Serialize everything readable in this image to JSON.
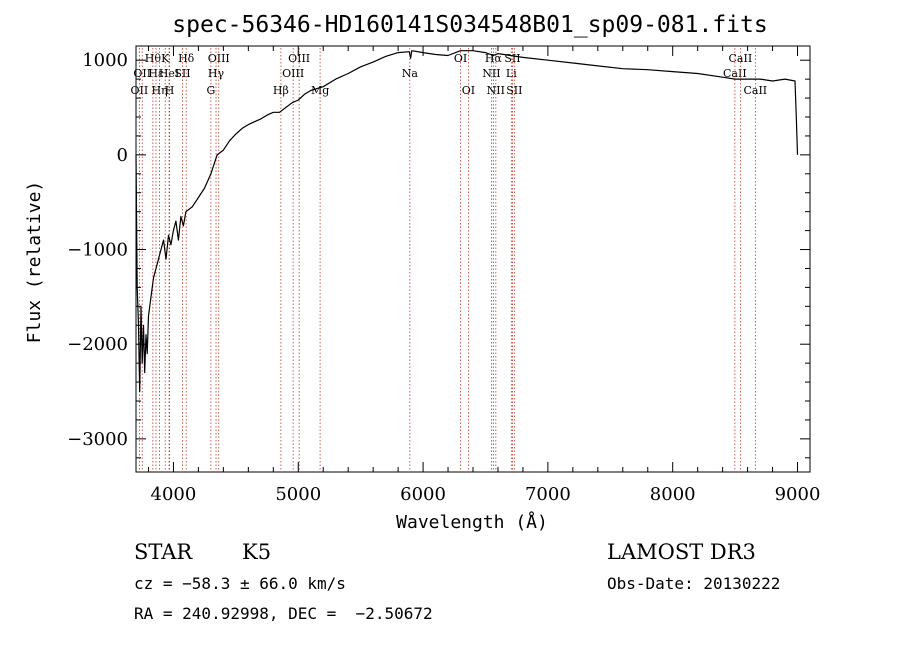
{
  "chart_data": {
    "type": "line",
    "title": "spec-56346-HD160141S034548B01_sp09-081.fits",
    "xlabel": "Wavelength (Å)",
    "ylabel": "Flux (relative)",
    "xlim": [
      3700,
      9100
    ],
    "ylim": [
      -3350,
      1150
    ],
    "x_ticks": [
      4000,
      5000,
      6000,
      7000,
      8000,
      9000
    ],
    "y_ticks": [
      -3000,
      -2000,
      -1000,
      0,
      1000
    ],
    "x_tick_labels": [
      "4000",
      "5000",
      "6000",
      "7000",
      "8000",
      "9000"
    ],
    "y_tick_labels": [
      "−3000",
      "−2000",
      "−1000",
      "0",
      "1000"
    ],
    "series": [
      {
        "name": "flux",
        "x": [
          3700,
          3710,
          3720,
          3730,
          3740,
          3750,
          3760,
          3770,
          3780,
          3790,
          3800,
          3820,
          3840,
          3860,
          3880,
          3900,
          3920,
          3940,
          3960,
          3980,
          4000,
          4020,
          4040,
          4060,
          4080,
          4100,
          4150,
          4200,
          4250,
          4300,
          4350,
          4400,
          4450,
          4500,
          4550,
          4600,
          4650,
          4700,
          4750,
          4800,
          4850,
          4900,
          4950,
          5000,
          5050,
          5100,
          5150,
          5200,
          5300,
          5400,
          5500,
          5600,
          5700,
          5800,
          5890,
          5900,
          5910,
          6000,
          6100,
          6200,
          6300,
          6400,
          6500,
          6563,
          6600,
          6700,
          6800,
          7000,
          7200,
          7400,
          7600,
          7800,
          8000,
          8200,
          8400,
          8500,
          8600,
          8700,
          8800,
          8900,
          8980,
          8990,
          9000
        ],
        "y": [
          0,
          -1400,
          -1800,
          -2500,
          -1600,
          -2200,
          -1800,
          -2300,
          -1900,
          -2100,
          -1700,
          -1500,
          -1300,
          -1200,
          -1100,
          -1000,
          -900,
          -1100,
          -850,
          -950,
          -800,
          -700,
          -900,
          -650,
          -750,
          -600,
          -550,
          -450,
          -350,
          -200,
          0,
          50,
          150,
          220,
          280,
          320,
          350,
          380,
          420,
          450,
          450,
          500,
          550,
          580,
          640,
          680,
          700,
          720,
          800,
          860,
          930,
          980,
          1040,
          1080,
          1090,
          1020,
          1100,
          1080,
          1060,
          1050,
          1100,
          1100,
          1080,
          1050,
          1070,
          1050,
          1030,
          1000,
          970,
          940,
          910,
          900,
          880,
          860,
          820,
          800,
          800,
          800,
          780,
          800,
          780,
          400,
          0
        ]
      }
    ],
    "line_markers": [
      {
        "wavelength": 3727,
        "label": "OII",
        "row": 3
      },
      {
        "wavelength": 3750,
        "label": "OII",
        "row": 2
      },
      {
        "wavelength": 3835,
        "label": "Hθ",
        "row": 1
      },
      {
        "wavelength": 3860,
        "label": "Hε",
        "row": 2
      },
      {
        "wavelength": 3889,
        "label": "Hη",
        "row": 3
      },
      {
        "wavelength": 3934,
        "label": "K",
        "row": 1
      },
      {
        "wavelength": 3965,
        "label": "HeI",
        "row": 2
      },
      {
        "wavelength": 3969,
        "label": "H",
        "row": 3
      },
      {
        "wavelength": 4072,
        "label": "SII",
        "row": 2
      },
      {
        "wavelength": 4102,
        "label": "Hδ",
        "row": 1
      },
      {
        "wavelength": 4300,
        "label": "G",
        "row": 3
      },
      {
        "wavelength": 4341,
        "label": "Hγ",
        "row": 2
      },
      {
        "wavelength": 4363,
        "label": "OIII",
        "row": 1
      },
      {
        "wavelength": 4861,
        "label": "Hβ",
        "row": 3
      },
      {
        "wavelength": 4959,
        "label": "OIII",
        "row": 2
      },
      {
        "wavelength": 5007,
        "label": "OIII",
        "row": 1
      },
      {
        "wavelength": 5175,
        "label": "Mg",
        "row": 3
      },
      {
        "wavelength": 5894,
        "label": "Na",
        "row": 2
      },
      {
        "wavelength": 6300,
        "label": "OI",
        "row": 1
      },
      {
        "wavelength": 6363,
        "label": "OI",
        "row": 3
      },
      {
        "wavelength": 6548,
        "label": "NII",
        "row": 2
      },
      {
        "wavelength": 6563,
        "label": "Hα",
        "row": 1
      },
      {
        "wavelength": 6583,
        "label": "NII",
        "row": 3
      },
      {
        "wavelength": 6707,
        "label": "Li",
        "row": 2
      },
      {
        "wavelength": 6716,
        "label": "SII",
        "row": 1
      },
      {
        "wavelength": 6731,
        "label": "SII",
        "row": 3
      },
      {
        "wavelength": 8498,
        "label": "CaII",
        "row": 2
      },
      {
        "wavelength": 8542,
        "label": "CaII",
        "row": 1
      },
      {
        "wavelength": 8662,
        "label": "CaII",
        "row": 3
      }
    ]
  },
  "info": {
    "object_class": "STAR",
    "subclass": "K5",
    "survey": "LAMOST DR3",
    "redshift": "cz = −58.3 ± 66.0 km/s",
    "obs_date": "Obs-Date: 20130222",
    "coords": "RA = 240.92998, DEC =  −2.50672"
  },
  "colors": {
    "marker_line": "#c0392b",
    "axis": "#000000",
    "spectrum": "#000000"
  }
}
